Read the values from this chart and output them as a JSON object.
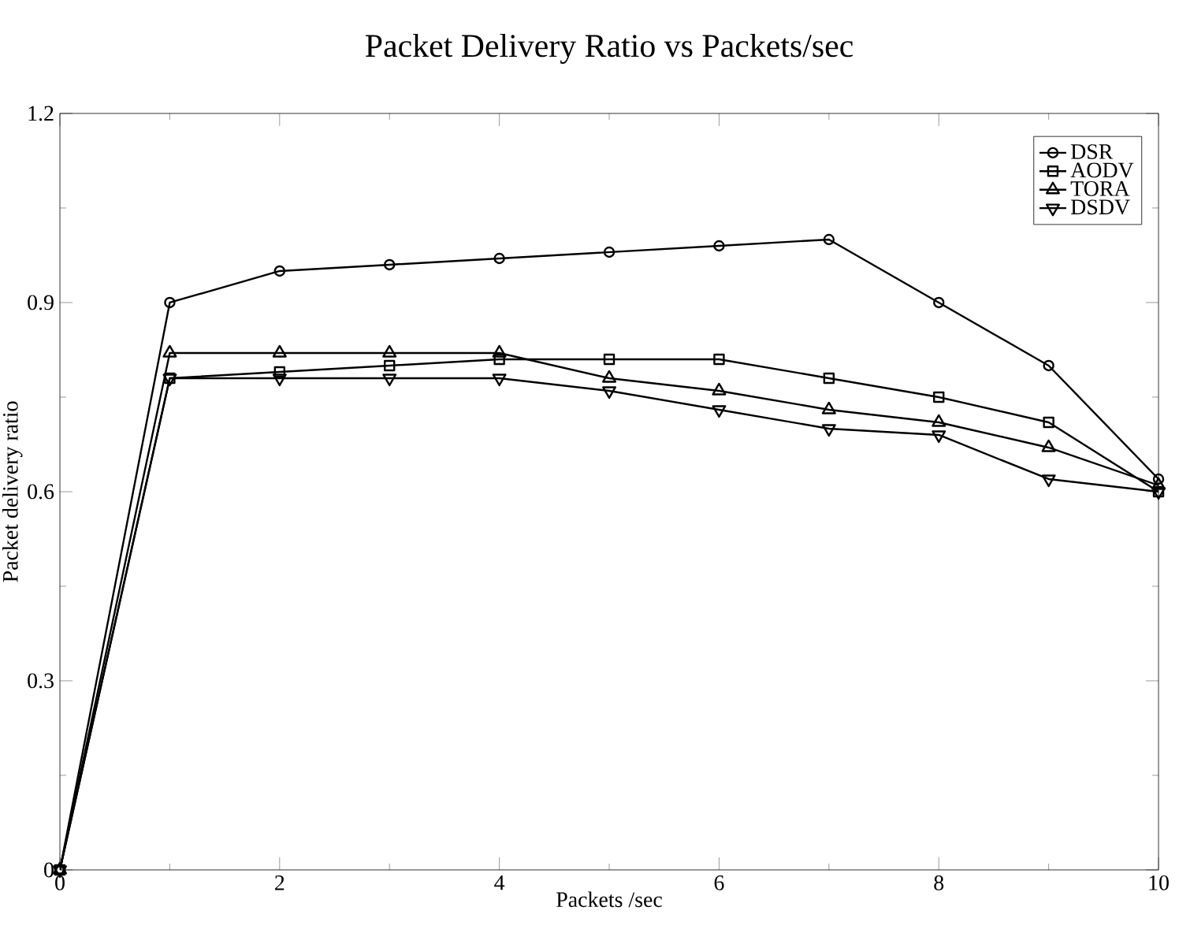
{
  "chart_data": {
    "type": "line",
    "title": "Packet Delivery Ratio vs Packets/sec",
    "xlabel": "Packets /sec",
    "ylabel": "Packet delivery ratio",
    "x": [
      0,
      1,
      2,
      3,
      4,
      5,
      6,
      7,
      8,
      9,
      10
    ],
    "series": [
      {
        "name": "DSR",
        "color": "#000000",
        "marker": "circle",
        "values": [
          0,
          0.9,
          0.95,
          0.96,
          0.97,
          0.98,
          0.99,
          1.0,
          0.9,
          0.8,
          0.62
        ]
      },
      {
        "name": "AODV",
        "color": "#000000",
        "marker": "square",
        "values": [
          0,
          0.78,
          0.79,
          0.8,
          0.81,
          0.81,
          0.81,
          0.78,
          0.75,
          0.71,
          0.6
        ]
      },
      {
        "name": "TORA",
        "color": "#000000",
        "marker": "triangle",
        "values": [
          0,
          0.82,
          0.82,
          0.82,
          0.82,
          0.78,
          0.76,
          0.73,
          0.71,
          0.67,
          0.61
        ]
      },
      {
        "name": "DSDV",
        "color": "#000000",
        "marker": "triangle down",
        "values": [
          0,
          0.78,
          0.78,
          0.78,
          0.78,
          0.76,
          0.73,
          0.7,
          0.69,
          0.62,
          0.6
        ]
      }
    ],
    "xlim": [
      0,
      10
    ],
    "xticks": [
      0,
      2,
      4,
      6,
      8,
      10
    ],
    "ylim": [
      0,
      1.2
    ],
    "yticks": [
      0,
      0.3,
      0.6,
      0.9,
      1.2
    ],
    "grid": false,
    "legend": "top right",
    "line_style": "solid"
  }
}
